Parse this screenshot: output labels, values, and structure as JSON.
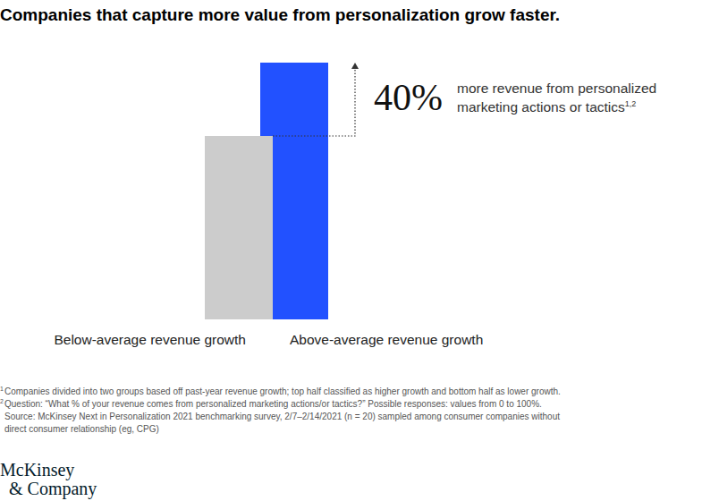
{
  "chart_data": {
    "type": "bar",
    "title": "Companies that capture more value from personalization grow faster.",
    "categories": [
      "Below-average revenue growth",
      "Above-average revenue growth"
    ],
    "values": [
      100,
      140
    ],
    "colors": [
      "#cccccc",
      "#2251ff"
    ],
    "ylim": [
      0,
      140
    ],
    "tick_labels": false,
    "annotation": {
      "value": 40,
      "label": "40%",
      "text": [
        "more revenue from personalized",
        "marketing actions or tactics"
      ],
      "superscript": "1,2"
    },
    "footnotes": [
      {
        "marker": "1",
        "text": "Companies divided into two groups based off past-year revenue growth; top half classified as higher growth and bottom half as lower growth."
      },
      {
        "marker": "2",
        "text": "Question: “What % of your revenue comes from personalized marketing actions/or tactics?” Possible responses: values from 0 to 100%."
      }
    ],
    "source": [
      "Source: McKinsey Next in Personalization 2021 benchmarking survey, 2/7–2/14/2021 (n = 20) sampled among consumer companies without",
      "direct consumer relationship (eg, CPG)"
    ],
    "logo": [
      "McKinsey",
      "& Company"
    ]
  }
}
